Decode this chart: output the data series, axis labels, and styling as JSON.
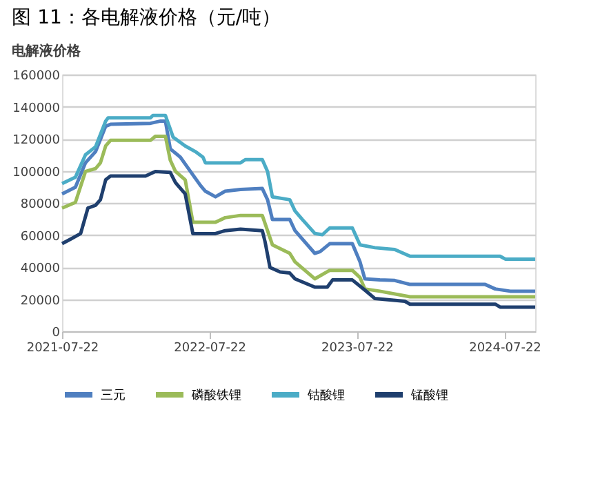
{
  "chart_data": {
    "type": "line",
    "title": "图 11：各电解液价格（元/吨）",
    "subtitle": "电解液价格",
    "xlim": [
      "2021-07-22",
      "2024-10-06"
    ],
    "xticks": [
      "2021-07-22",
      "2022-07-22",
      "2023-07-22",
      "2024-07-22"
    ],
    "ylim": [
      0,
      160000
    ],
    "yticks": [
      0,
      20000,
      40000,
      60000,
      80000,
      100000,
      120000,
      140000,
      160000
    ],
    "grid": "y",
    "legend": "bottom",
    "marker": "none",
    "line_style": "solid",
    "series": [
      {
        "name": "三元",
        "color": "#4f7fc0",
        "x": [
          "2021-07-22",
          "2021-08-24",
          "2021-09-18",
          "2021-10-13",
          "2021-11-07",
          "2021-11-19",
          "2022-02-26",
          "2022-03-23",
          "2022-04-04",
          "2022-04-16",
          "2022-05-11",
          "2022-06-05",
          "2022-06-30",
          "2022-07-12",
          "2022-08-06",
          "2022-08-30",
          "2022-10-07",
          "2022-11-30",
          "2022-12-13",
          "2022-12-25",
          "2023-02-06",
          "2023-02-19",
          "2023-04-09",
          "2023-04-22",
          "2023-05-16",
          "2023-07-11",
          "2023-07-30",
          "2023-08-11",
          "2023-09-17",
          "2023-10-24",
          "2023-12-01",
          "2024-06-04",
          "2024-06-29",
          "2024-08-05",
          "2024-10-06"
        ],
        "values": [
          85600,
          89800,
          105000,
          112000,
          127800,
          129000,
          129600,
          131000,
          131000,
          113700,
          108500,
          99600,
          90800,
          87300,
          83800,
          87300,
          88400,
          89000,
          82000,
          69700,
          69700,
          62700,
          48600,
          49600,
          54600,
          54600,
          43300,
          32700,
          32000,
          31700,
          29200,
          29200,
          26400,
          25000,
          25000
        ]
      },
      {
        "name": "磷酸铁锂",
        "color": "#9bbb59",
        "x": [
          "2021-07-22",
          "2021-08-24",
          "2021-09-18",
          "2021-10-13",
          "2021-10-25",
          "2021-11-07",
          "2021-11-19",
          "2022-02-26",
          "2022-03-10",
          "2022-04-04",
          "2022-04-16",
          "2022-04-29",
          "2022-05-23",
          "2022-06-11",
          "2022-08-06",
          "2022-08-30",
          "2022-10-07",
          "2022-11-30",
          "2022-12-13",
          "2022-12-25",
          "2023-02-06",
          "2023-02-19",
          "2023-04-09",
          "2023-05-16",
          "2023-07-11",
          "2023-07-30",
          "2023-08-11",
          "2023-09-17",
          "2023-12-01",
          "2024-10-06"
        ],
        "values": [
          76800,
          80300,
          99600,
          101400,
          105000,
          115500,
          119000,
          119000,
          121500,
          121500,
          106700,
          99600,
          94400,
          68000,
          68000,
          70800,
          72200,
          72200,
          62700,
          53900,
          48600,
          43300,
          32700,
          38000,
          38000,
          33500,
          26400,
          25000,
          21500,
          21500
        ]
      },
      {
        "name": "钴酸锂",
        "color": "#4bacc6",
        "x": [
          "2021-07-22",
          "2021-08-24",
          "2021-09-18",
          "2021-10-13",
          "2021-11-07",
          "2021-11-13",
          "2022-02-26",
          "2022-03-04",
          "2022-04-04",
          "2022-04-23",
          "2022-05-23",
          "2022-06-17",
          "2022-07-06",
          "2022-07-12",
          "2022-10-07",
          "2022-10-19",
          "2022-11-30",
          "2022-12-13",
          "2022-12-25",
          "2023-02-06",
          "2023-02-19",
          "2023-03-09",
          "2023-04-09",
          "2023-04-28",
          "2023-05-16",
          "2023-07-11",
          "2023-07-30",
          "2023-09-05",
          "2023-10-24",
          "2023-12-01",
          "2024-07-11",
          "2024-07-24",
          "2024-10-06"
        ],
        "values": [
          92000,
          96000,
          110000,
          115000,
          131000,
          133000,
          133000,
          134500,
          134500,
          121000,
          115500,
          112000,
          108500,
          105000,
          105000,
          107000,
          107000,
          99600,
          83800,
          82000,
          75000,
          69700,
          61000,
          60200,
          64400,
          64400,
          53900,
          52100,
          51000,
          46800,
          46800,
          45000,
          45000
        ]
      },
      {
        "name": "锰酸锂",
        "color": "#1f3f6e",
        "x": [
          "2021-07-22",
          "2021-08-12",
          "2021-09-06",
          "2021-09-24",
          "2021-10-13",
          "2021-10-25",
          "2021-11-07",
          "2021-11-19",
          "2022-02-14",
          "2022-03-10",
          "2022-04-16",
          "2022-04-29",
          "2022-05-23",
          "2022-06-11",
          "2022-08-06",
          "2022-08-30",
          "2022-10-07",
          "2022-11-30",
          "2022-12-07",
          "2022-12-19",
          "2023-01-13",
          "2023-02-06",
          "2023-02-19",
          "2023-04-09",
          "2023-05-10",
          "2023-05-23",
          "2023-07-11",
          "2023-08-11",
          "2023-09-05",
          "2023-11-18",
          "2023-12-01",
          "2024-06-29",
          "2024-07-11",
          "2024-10-06"
        ],
        "values": [
          54600,
          57400,
          60900,
          76800,
          78500,
          82000,
          94400,
          96800,
          96800,
          99600,
          99000,
          92600,
          85600,
          60900,
          60900,
          62700,
          63700,
          62700,
          55600,
          39800,
          37000,
          36300,
          32700,
          27500,
          27500,
          32000,
          32000,
          25700,
          20400,
          18700,
          16900,
          16900,
          15100,
          15100
        ]
      }
    ]
  }
}
